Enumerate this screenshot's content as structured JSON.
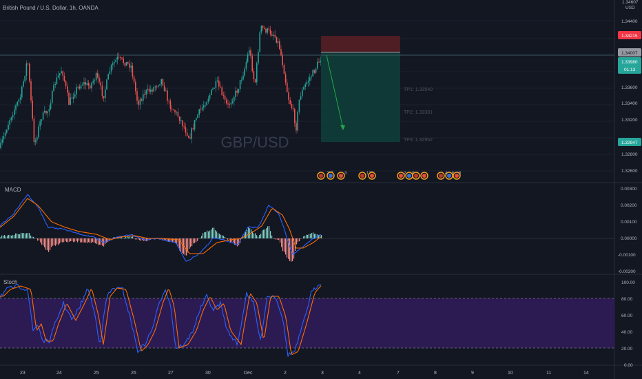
{
  "header": {
    "symbol_title": "British Pound / U.S. Dollar, 1h, OANDA",
    "currency": "USD"
  },
  "watermark": "GBP/USD",
  "price_axis": {
    "ticks": [
      "1.34400",
      "1.33800",
      "1.33600",
      "1.33400",
      "1.33200",
      "1.32800",
      "1.32600"
    ],
    "top_partial": "1.34607"
  },
  "price_badges": {
    "stop": "1.34215",
    "entry": "1.34007",
    "last": "1.33980",
    "countdown": "01:13",
    "target": "1.32947"
  },
  "take_profits": [
    {
      "label": "TP1: 1.33540"
    },
    {
      "label": "TP2: 1.33301"
    },
    {
      "label": "TP3: 1.32952"
    }
  ],
  "macd": {
    "title": "MACD",
    "axis": [
      "0.00300",
      "0.00200",
      "0.00100",
      "0.00000",
      "-0.00100",
      "-0.00200"
    ]
  },
  "stoch": {
    "title": "Stoch",
    "axis": [
      "100.00",
      "80.00",
      "60.00",
      "40.00",
      "20.00",
      "0.00"
    ]
  },
  "time_axis": [
    "23",
    "24",
    "25",
    "26",
    "27",
    "30",
    "Dec",
    "2",
    "3",
    "4",
    "7",
    "8",
    "9",
    "10",
    "11",
    "14"
  ],
  "events": [
    {
      "text": "207"
    },
    {
      "text": "3"
    },
    {
      "text": "128"
    },
    {
      "text": "2"
    },
    {
      "text": "9"
    },
    {
      "text": "4"
    },
    {
      "text": "6"
    },
    {
      "text": "8"
    }
  ],
  "colors": {
    "background": "#131722",
    "up": "#26a69a",
    "down": "#ef5350",
    "macd_line": "#2962ff",
    "signal_line": "#ff6d00",
    "stoch_band": "#311b5c",
    "target_zone": "#0f3d3a",
    "stop_zone": "#5a1e24"
  }
}
